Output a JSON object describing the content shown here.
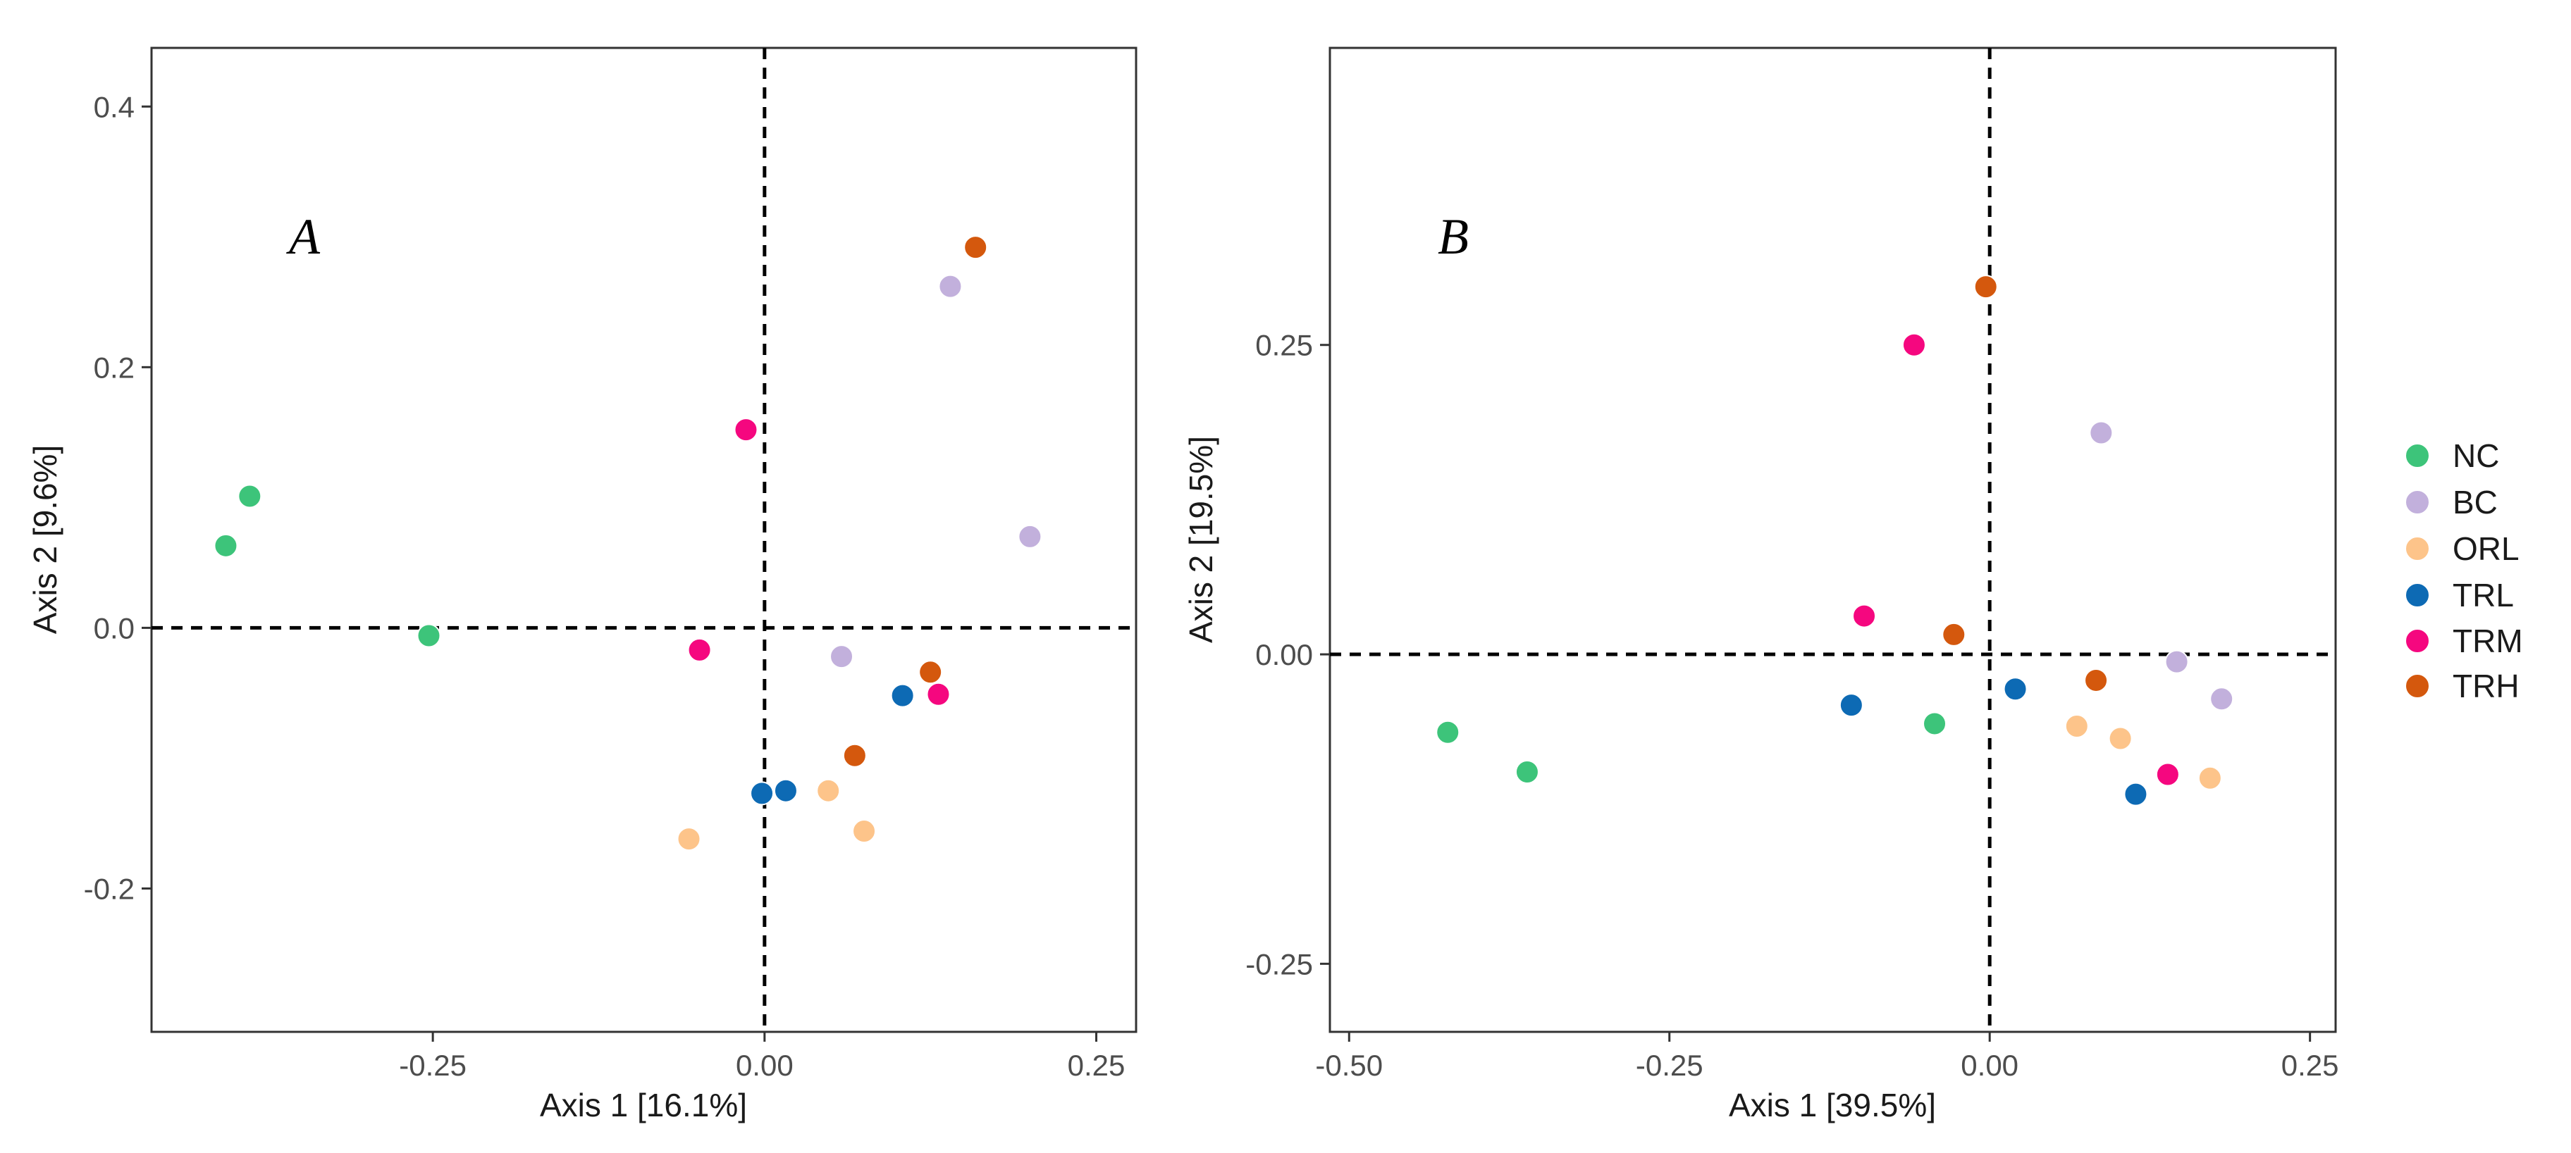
{
  "colors": {
    "NC": "#3dc47a",
    "BC": "#c2b0dc",
    "ORL": "#fdc48a",
    "TRL": "#0d6ab4",
    "TRM": "#f5077f",
    "TRH": "#d4580d"
  },
  "legend": {
    "entries": [
      "NC",
      "BC",
      "ORL",
      "TRL",
      "TRM",
      "TRH"
    ]
  },
  "chart_data": [
    {
      "type": "scatter",
      "panel_label": "A",
      "xlabel": "Axis 1 [16.1%]",
      "ylabel": "Axis 2 [9.6%]",
      "xlim": [
        -0.462,
        0.28
      ],
      "ylim": [
        -0.31,
        0.445
      ],
      "xticks": [
        -0.25,
        0.0,
        0.25
      ],
      "xtick_labels": [
        "-0.25",
        "0.00",
        "0.25"
      ],
      "yticks": [
        -0.2,
        0.0,
        0.2,
        0.4
      ],
      "ytick_labels": [
        "-0.2",
        "0.0",
        "0.2",
        "0.4"
      ],
      "reference_lines": {
        "x": 0,
        "y": 0,
        "style": "dashed"
      },
      "series": [
        {
          "name": "NC",
          "points": [
            [
              -0.388,
              0.101
            ],
            [
              -0.406,
              0.063
            ],
            [
              -0.253,
              -0.006
            ]
          ]
        },
        {
          "name": "BC",
          "points": [
            [
              0.14,
              0.262
            ],
            [
              0.2,
              0.07
            ],
            [
              0.058,
              -0.022
            ]
          ]
        },
        {
          "name": "ORL",
          "points": [
            [
              -0.057,
              -0.162
            ],
            [
              0.048,
              -0.125
            ],
            [
              0.075,
              -0.156
            ]
          ]
        },
        {
          "name": "TRL",
          "points": [
            [
              -0.002,
              -0.127
            ],
            [
              0.016,
              -0.125
            ],
            [
              0.104,
              -0.052
            ]
          ]
        },
        {
          "name": "TRM",
          "points": [
            [
              -0.014,
              0.152
            ],
            [
              -0.049,
              -0.017
            ],
            [
              0.131,
              -0.051
            ]
          ]
        },
        {
          "name": "TRH",
          "points": [
            [
              0.159,
              0.292
            ],
            [
              0.125,
              -0.034
            ],
            [
              0.068,
              -0.098
            ]
          ]
        }
      ]
    },
    {
      "type": "scatter",
      "panel_label": "B",
      "xlabel": "Axis 1 [39.5%]",
      "ylabel": "Axis 2 [19.5%]",
      "xlim": [
        -0.515,
        0.27
      ],
      "ylim": [
        -0.305,
        0.49
      ],
      "xticks": [
        -0.5,
        -0.25,
        0.0,
        0.25
      ],
      "xtick_labels": [
        "-0.50",
        "-0.25",
        "0.00",
        "0.25"
      ],
      "yticks": [
        -0.25,
        0.0,
        0.25
      ],
      "ytick_labels": [
        "-0.25",
        "0.00",
        "0.25"
      ],
      "reference_lines": {
        "x": 0,
        "y": 0,
        "style": "dashed"
      },
      "series": [
        {
          "name": "NC",
          "points": [
            [
              -0.423,
              -0.063
            ],
            [
              -0.361,
              -0.095
            ],
            [
              -0.043,
              -0.056
            ]
          ]
        },
        {
          "name": "BC",
          "points": [
            [
              0.087,
              0.179
            ],
            [
              0.146,
              -0.006
            ],
            [
              0.181,
              -0.036
            ]
          ]
        },
        {
          "name": "ORL",
          "points": [
            [
              0.068,
              -0.058
            ],
            [
              0.102,
              -0.068
            ],
            [
              0.172,
              -0.1
            ]
          ]
        },
        {
          "name": "TRL",
          "points": [
            [
              -0.108,
              -0.041
            ],
            [
              0.02,
              -0.028
            ],
            [
              0.114,
              -0.113
            ]
          ]
        },
        {
          "name": "TRM",
          "points": [
            [
              -0.059,
              0.25
            ],
            [
              -0.098,
              0.031
            ],
            [
              0.139,
              -0.097
            ]
          ]
        },
        {
          "name": "TRH",
          "points": [
            [
              -0.003,
              0.297
            ],
            [
              -0.028,
              0.016
            ],
            [
              0.083,
              -0.021
            ]
          ]
        }
      ]
    }
  ]
}
